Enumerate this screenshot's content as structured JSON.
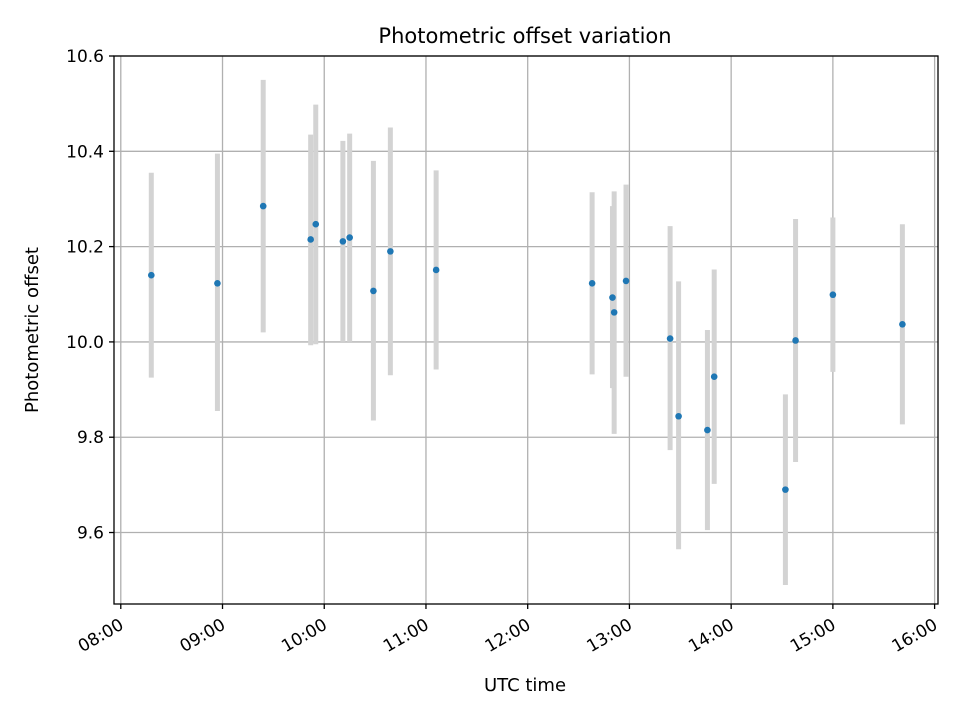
{
  "chart_data": {
    "type": "scatter",
    "title": "Photometric offset variation",
    "xlabel": "UTC time",
    "ylabel": "Photometric offset",
    "x_is_time": true,
    "xlim": [
      "07:56",
      "16:02"
    ],
    "ylim": [
      9.45,
      10.6
    ],
    "xticks": [
      "08:00",
      "09:00",
      "10:00",
      "11:00",
      "12:00",
      "13:00",
      "14:00",
      "15:00",
      "16:00"
    ],
    "yticks": [
      "9.6",
      "9.8",
      "10.0",
      "10.2",
      "10.4",
      "10.6"
    ],
    "grid": true,
    "colors": {
      "marker": "#1f77b4",
      "errorbar": "#d3d3d3",
      "grid": "#b0b0b0"
    },
    "points": [
      {
        "x": "08:18",
        "y": 10.14,
        "err_low": 9.925,
        "err_high": 10.355
      },
      {
        "x": "08:57",
        "y": 10.123,
        "err_low": 9.855,
        "err_high": 10.395
      },
      {
        "x": "09:24",
        "y": 10.285,
        "err_low": 10.02,
        "err_high": 10.55
      },
      {
        "x": "09:52",
        "y": 10.215,
        "err_low": 9.993,
        "err_high": 10.435
      },
      {
        "x": "09:55",
        "y": 10.247,
        "err_low": 9.995,
        "err_high": 10.498
      },
      {
        "x": "10:11",
        "y": 10.211,
        "err_low": 10.0,
        "err_high": 10.422
      },
      {
        "x": "10:15",
        "y": 10.219,
        "err_low": 10.0,
        "err_high": 10.437
      },
      {
        "x": "10:29",
        "y": 10.107,
        "err_low": 9.835,
        "err_high": 10.38
      },
      {
        "x": "10:39",
        "y": 10.19,
        "err_low": 9.93,
        "err_high": 10.45
      },
      {
        "x": "11:06",
        "y": 10.151,
        "err_low": 9.942,
        "err_high": 10.36
      },
      {
        "x": "12:38",
        "y": 10.123,
        "err_low": 9.932,
        "err_high": 10.314
      },
      {
        "x": "12:50",
        "y": 10.093,
        "err_low": 9.903,
        "err_high": 10.285
      },
      {
        "x": "12:51",
        "y": 10.062,
        "err_low": 9.807,
        "err_high": 10.316
      },
      {
        "x": "12:58",
        "y": 10.128,
        "err_low": 9.927,
        "err_high": 10.33
      },
      {
        "x": "13:24",
        "y": 10.007,
        "err_low": 9.773,
        "err_high": 10.243
      },
      {
        "x": "13:29",
        "y": 9.844,
        "err_low": 9.565,
        "err_high": 10.127
      },
      {
        "x": "13:46",
        "y": 9.815,
        "err_low": 9.605,
        "err_high": 10.025
      },
      {
        "x": "13:50",
        "y": 9.927,
        "err_low": 9.702,
        "err_high": 10.152
      },
      {
        "x": "14:32",
        "y": 9.69,
        "err_low": 9.49,
        "err_high": 9.89
      },
      {
        "x": "14:38",
        "y": 10.003,
        "err_low": 9.748,
        "err_high": 10.258
      },
      {
        "x": "15:00",
        "y": 10.099,
        "err_low": 9.937,
        "err_high": 10.261
      },
      {
        "x": "15:41",
        "y": 10.037,
        "err_low": 9.827,
        "err_high": 10.247
      }
    ]
  }
}
